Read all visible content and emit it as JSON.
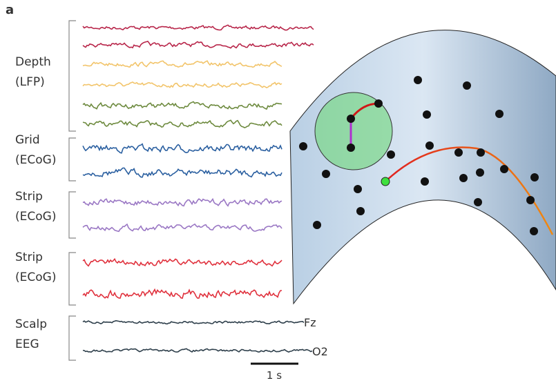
{
  "panel_label": "a",
  "groups": [
    {
      "lines": [
        "Depth",
        "(LFP)"
      ]
    },
    {
      "lines": [
        "Grid",
        "(ECoG)"
      ]
    },
    {
      "lines": [
        "Strip",
        "(ECoG)"
      ]
    },
    {
      "lines": [
        "Strip",
        "(ECoG)"
      ]
    },
    {
      "lines": [
        "Scalp",
        "EEG"
      ]
    }
  ],
  "channel_labels": [
    "Fz",
    "O2"
  ],
  "scale_bar_label": "1 s"
}
